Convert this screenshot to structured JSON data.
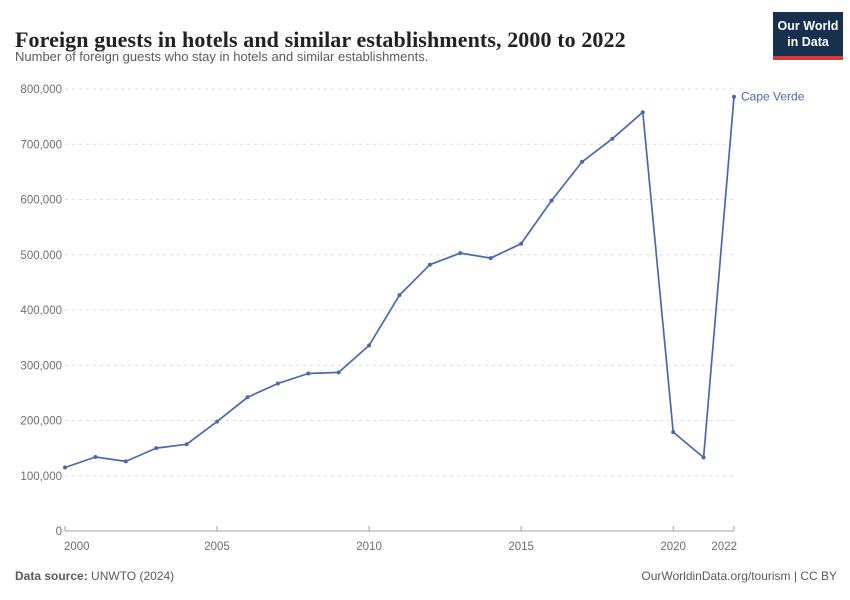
{
  "header": {
    "title": "Foreign guests in hotels and similar establishments, 2000 to 2022",
    "subtitle": "Number of foreign guests who stay in hotels and similar establishments.",
    "logo": {
      "line1": "Our World",
      "line2": "in Data",
      "bg_color": "#16304e",
      "accent_color": "#dc3932"
    }
  },
  "chart_data": {
    "type": "line",
    "title": "Foreign guests in hotels and similar establishments, 2000 to 2022",
    "x": [
      2000,
      2001,
      2002,
      2003,
      2004,
      2005,
      2006,
      2007,
      2008,
      2009,
      2010,
      2011,
      2012,
      2013,
      2014,
      2015,
      2016,
      2017,
      2018,
      2019,
      2020,
      2021,
      2022
    ],
    "series": [
      {
        "name": "Cape Verde",
        "color": "#4a69ad",
        "values": [
          115000,
          134000,
          126000,
          150000,
          157000,
          198000,
          242000,
          267000,
          285000,
          287000,
          336000,
          427000,
          482000,
          503000,
          494000,
          520000,
          598000,
          668000,
          710000,
          758000,
          179000,
          133000,
          786000
        ]
      }
    ],
    "xlim": [
      2000,
      2022
    ],
    "ylim": [
      0,
      800000
    ],
    "x_ticks": [
      2000,
      2005,
      2010,
      2015,
      2020,
      2022
    ],
    "y_ticks": [
      {
        "value": 0,
        "label": "0"
      },
      {
        "value": 100000,
        "label": "100,000"
      },
      {
        "value": 200000,
        "label": "200,000"
      },
      {
        "value": 300000,
        "label": "300,000"
      },
      {
        "value": 400000,
        "label": "400,000"
      },
      {
        "value": 500000,
        "label": "500,000"
      },
      {
        "value": 600000,
        "label": "600,000"
      },
      {
        "value": 700000,
        "label": "700,000"
      },
      {
        "value": 800000,
        "label": "800,000"
      }
    ],
    "grid": "horizontal-dashed",
    "legend_position": "end-of-line",
    "colors": {
      "grid": "#dcdcdc",
      "axis": "#a3a3a3",
      "tick_text": "#6e6e6e"
    }
  },
  "footer": {
    "source_label": "Data source:",
    "source_value": " UNWTO (2024)",
    "right_text": "OurWorldinData.org/tourism | CC BY"
  }
}
